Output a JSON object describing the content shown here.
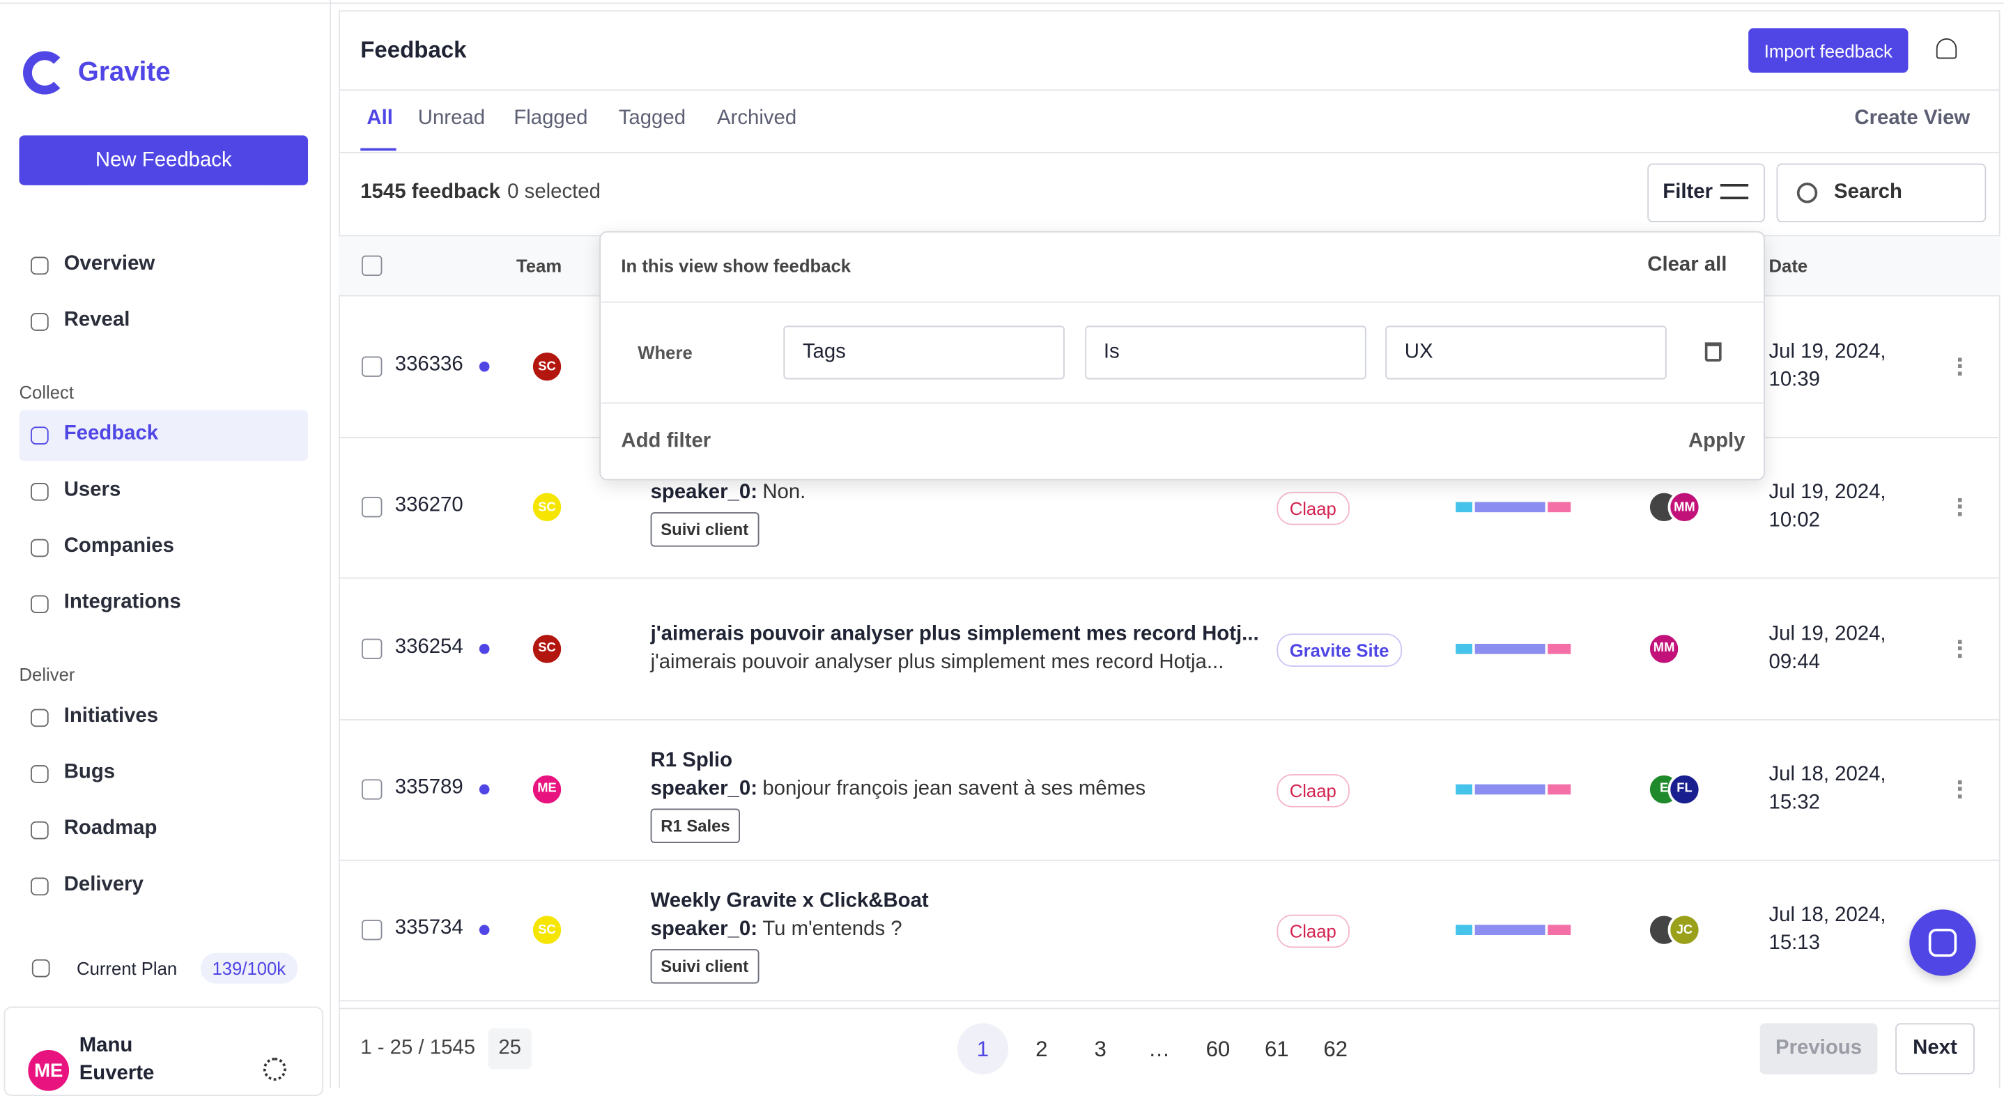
{
  "sidebar": {
    "brand": "Gravite",
    "new_button": "New Feedback",
    "top_nav": [
      "Overview",
      "Reveal"
    ],
    "sections": [
      {
        "label": "Collect",
        "items": [
          "Feedback",
          "Users",
          "Companies",
          "Integrations"
        ]
      },
      {
        "label": "Deliver",
        "items": [
          "Initiatives",
          "Bugs",
          "Roadmap",
          "Delivery"
        ]
      }
    ],
    "active": "Feedback",
    "plan_label": "Current Plan",
    "plan_usage": "139/100k",
    "user": {
      "initials": "ME",
      "name": "Manu Euverte"
    }
  },
  "header": {
    "title": "Feedback",
    "import_button": "Import feedback"
  },
  "tabs": {
    "items": [
      "All",
      "Unread",
      "Flagged",
      "Tagged",
      "Archived"
    ],
    "active": "All",
    "create_view": "Create View"
  },
  "toolbar": {
    "count": "1545 feedback",
    "selected": "0 selected",
    "filter": "Filter",
    "search": "Search"
  },
  "table": {
    "columns": [
      "Team",
      "Date"
    ],
    "rows": [
      {
        "id": "336336",
        "unread": true,
        "team": {
          "initials": "SC",
          "color": "#b3160f"
        },
        "date": "Jul 19, 2024,",
        "time": "10:39"
      },
      {
        "id": "336270",
        "unread": false,
        "team": {
          "initials": "SC",
          "color": "#f5e500"
        },
        "speaker": "speaker_0:",
        "text": "Non.",
        "tag": "Suivi client",
        "source": "Claap",
        "people": [
          {
            "initials": "",
            "color": "#444444"
          },
          {
            "initials": "MM",
            "color": "#c2127a"
          }
        ],
        "date": "Jul 19, 2024,",
        "time": "10:02"
      },
      {
        "id": "336254",
        "unread": true,
        "team": {
          "initials": "SC",
          "color": "#b3160f"
        },
        "title": "j'aimerais pouvoir analyser plus simplement mes record Hotj...",
        "text": "j'aimerais pouvoir analyser plus simplement mes record Hotja...",
        "source": "Gravite Site",
        "people": [
          {
            "initials": "MM",
            "color": "#c2127a"
          }
        ],
        "date": "Jul 19, 2024,",
        "time": "09:44"
      },
      {
        "id": "335789",
        "unread": true,
        "team": {
          "initials": "ME",
          "color": "#e8137e"
        },
        "title": "R1 Splio",
        "speaker": "speaker_0:",
        "text": "bonjour françois jean savent à ses mêmes",
        "tag": "R1 Sales",
        "source": "Claap",
        "people": [
          {
            "initials": "E",
            "color": "#1f8a2c"
          },
          {
            "initials": "FL",
            "color": "#1a1f8f"
          }
        ],
        "date": "Jul 18, 2024,",
        "time": "15:32"
      },
      {
        "id": "335734",
        "unread": true,
        "team": {
          "initials": "SC",
          "color": "#f5e500"
        },
        "title": "Weekly Gravite x Click&Boat",
        "speaker": "speaker_0:",
        "text": "Tu m'entends ?",
        "tag": "Suivi client",
        "source": "Claap",
        "people": [
          {
            "initials": "",
            "color": "#444444"
          },
          {
            "initials": "JC",
            "color": "#9aa01a"
          }
        ],
        "date": "Jul 18, 2024,",
        "time": "15:13"
      }
    ]
  },
  "filter_popup": {
    "heading": "In this view show feedback",
    "clear": "Clear all",
    "where": "Where",
    "fields": [
      "Tags",
      "Is",
      "UX"
    ],
    "add": "Add filter",
    "apply": "Apply"
  },
  "pagination": {
    "range": "1 - 25 / 1545",
    "per_page": "25",
    "pages": [
      "1",
      "2",
      "3",
      "…",
      "60",
      "61",
      "62"
    ],
    "current": "1",
    "previous": "Previous",
    "next": "Next"
  }
}
